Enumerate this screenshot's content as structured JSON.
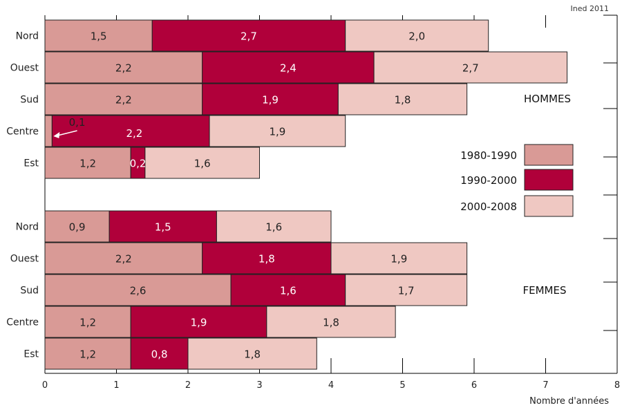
{
  "credit": "Ined 2011",
  "chart_data": {
    "type": "bar",
    "orientation": "horizontal",
    "stacked": true,
    "xlabel": "Nombre d'années",
    "xlim": [
      0,
      8
    ],
    "xticks": [
      0,
      1,
      2,
      3,
      4,
      5,
      6,
      7,
      8
    ],
    "legend_position": "right",
    "series": [
      {
        "name": "1980-1990",
        "color": "#d99a96"
      },
      {
        "name": "1990-2000",
        "color": "#b0003a"
      },
      {
        "name": "2000-2008",
        "color": "#efc8c2"
      }
    ],
    "groups": [
      {
        "title": "HOMMES",
        "categories": [
          "Nord",
          "Ouest",
          "Sud",
          "Centre",
          "Est"
        ],
        "values": [
          [
            1.5,
            2.7,
            2.0
          ],
          [
            2.2,
            2.4,
            2.7
          ],
          [
            2.2,
            1.9,
            1.8
          ],
          [
            0.1,
            2.2,
            1.9
          ],
          [
            1.2,
            0.2,
            1.6
          ]
        ],
        "labels": [
          [
            "1,5",
            "2,7",
            "2,0"
          ],
          [
            "2,2",
            "2,4",
            "2,7"
          ],
          [
            "2,2",
            "1,9",
            "1,8"
          ],
          [
            "0,1",
            "2,2",
            "1,9"
          ],
          [
            "1,2",
            "0,2",
            "1,6"
          ]
        ]
      },
      {
        "title": "FEMMES",
        "categories": [
          "Nord",
          "Ouest",
          "Sud",
          "Centre",
          "Est"
        ],
        "values": [
          [
            0.9,
            1.5,
            1.6
          ],
          [
            2.2,
            1.8,
            1.9
          ],
          [
            2.6,
            1.6,
            1.7
          ],
          [
            1.2,
            1.9,
            1.8
          ],
          [
            1.2,
            0.8,
            1.8
          ]
        ],
        "labels": [
          [
            "0,9",
            "1,5",
            "1,6"
          ],
          [
            "2,2",
            "1,8",
            "1,9"
          ],
          [
            "2,6",
            "1,6",
            "1,7"
          ],
          [
            "1,2",
            "1,9",
            "1,8"
          ],
          [
            "1,2",
            "0,8",
            "1,8"
          ]
        ]
      }
    ]
  }
}
